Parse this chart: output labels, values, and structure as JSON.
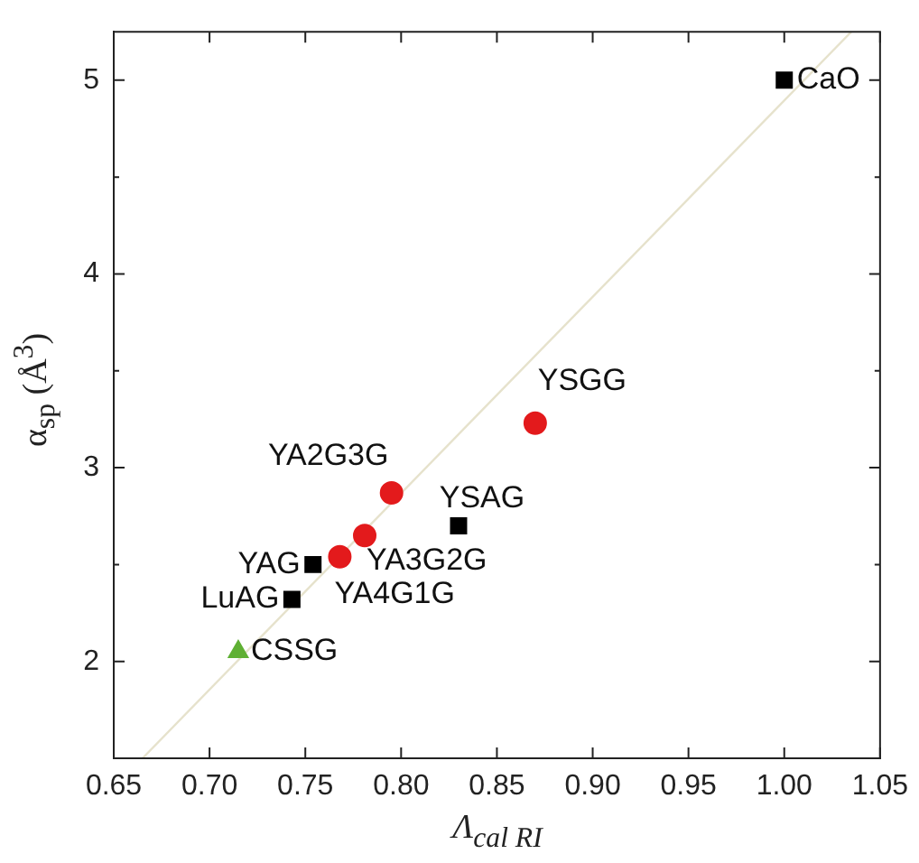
{
  "chart_data": {
    "type": "scatter",
    "xlabel": "Λ$_{cal RI}$",
    "ylabel": "α$_{sp}$ (Å$^{3}$)",
    "xlim": [
      0.65,
      1.05
    ],
    "xticks": [
      {
        "value": 0.65,
        "label": "0.65"
      },
      {
        "value": 0.7,
        "label": "0.70"
      },
      {
        "value": 0.75,
        "label": "0.75"
      },
      {
        "value": 0.8,
        "label": "0.80"
      },
      {
        "value": 0.85,
        "label": "0.85"
      },
      {
        "value": 0.9,
        "label": "0.90"
      },
      {
        "value": 0.95,
        "label": "0.95"
      },
      {
        "value": 1.0,
        "label": "1.00"
      },
      {
        "value": 1.05,
        "label": "1.05"
      }
    ],
    "ylim": [
      1.5,
      5.25
    ],
    "yticks": [
      2,
      3,
      4,
      5
    ],
    "series": [
      {
        "color": "#000000",
        "marker": "square",
        "x": [
          1.0,
          0.83,
          0.754,
          0.743
        ],
        "values": [
          5.0,
          2.7,
          2.5,
          2.32
        ]
      },
      {
        "color": "#e31a1c",
        "marker": "circle",
        "x": [
          0.87,
          0.795,
          0.781,
          0.768
        ],
        "values": [
          3.23,
          2.87,
          2.65,
          2.54
        ]
      },
      {
        "color": "#5fb034",
        "marker": "triangle",
        "x": [
          0.715
        ],
        "values": [
          2.05
        ]
      },
      {
        "type": "line",
        "color": "#e6e2cc",
        "marker": "none",
        "line_style": "solid",
        "x": [
          0.665,
          1.035
        ],
        "values": [
          1.5,
          5.25
        ]
      }
    ],
    "annotations": [
      {
        "text": "CaO",
        "x": 1.0,
        "y": 5.0
      },
      {
        "text": "YSGG",
        "x": 0.87,
        "y": 3.23
      },
      {
        "text": "YA2G3G",
        "x": 0.795,
        "y": 2.87
      },
      {
        "text": "YSAG",
        "x": 0.83,
        "y": 2.7
      },
      {
        "text": "YA3G2G",
        "x": 0.781,
        "y": 2.65
      },
      {
        "text": "YA4G1G",
        "x": 0.768,
        "y": 2.54
      },
      {
        "text": "YAG",
        "x": 0.754,
        "y": 2.5
      },
      {
        "text": "LuAG",
        "x": 0.743,
        "y": 2.32
      },
      {
        "text": "CSSG",
        "x": 0.715,
        "y": 2.05
      }
    ]
  }
}
